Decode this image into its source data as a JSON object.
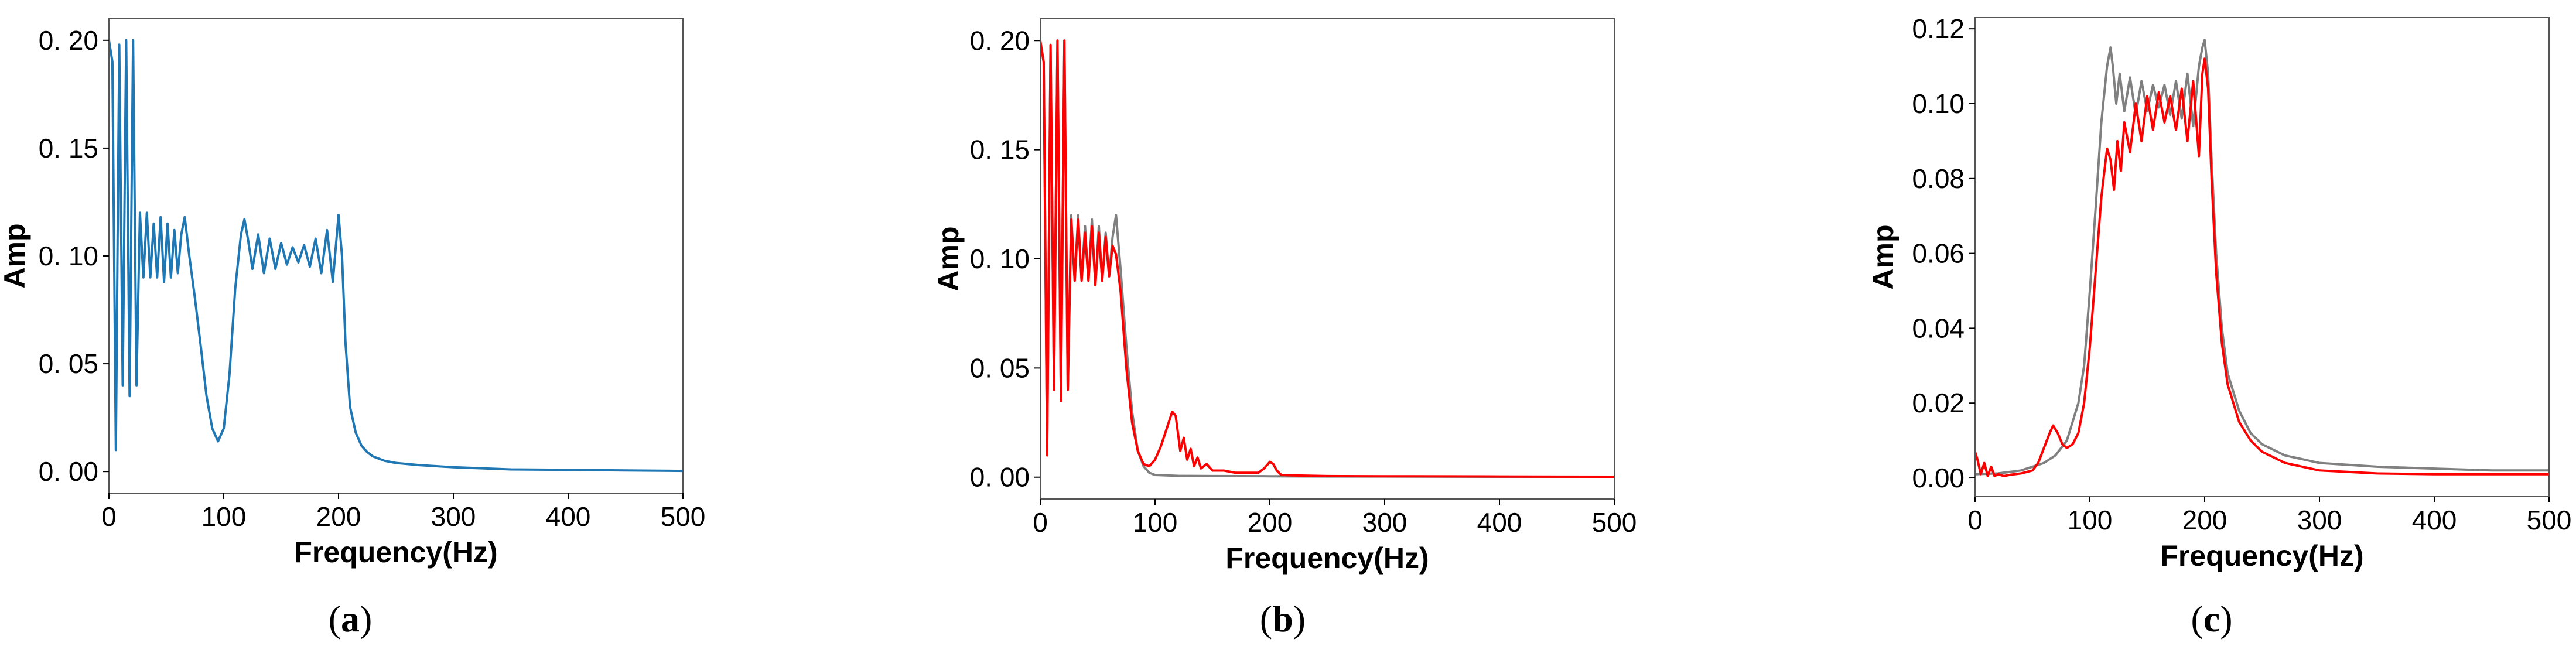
{
  "chart_data": [
    {
      "panel_label": "a",
      "type": "line",
      "xlabel": "Frequency(Hz)",
      "ylabel": "Amp",
      "xlim": [
        0,
        500
      ],
      "ylim": [
        -0.01,
        0.21
      ],
      "xticks": [
        0,
        100,
        200,
        300,
        400,
        500
      ],
      "yticks": [
        0.0,
        0.05,
        0.1,
        0.15,
        0.2
      ],
      "ytick_labels": [
        "0. 00",
        "0. 05",
        "0. 10",
        "0. 15",
        "0. 20"
      ],
      "grid": false,
      "series": [
        {
          "color": "#1f77b4",
          "x": [
            0,
            3,
            6,
            9,
            12,
            15,
            18,
            21,
            24,
            27,
            30,
            33,
            36,
            39,
            42,
            45,
            48,
            51,
            54,
            57,
            60,
            63,
            66,
            70,
            75,
            80,
            85,
            90,
            95,
            100,
            105,
            110,
            115,
            118,
            121,
            125,
            130,
            135,
            140,
            145,
            150,
            155,
            160,
            165,
            170,
            175,
            180,
            185,
            190,
            195,
            200,
            203,
            206,
            210,
            215,
            220,
            225,
            230,
            240,
            250,
            270,
            300,
            350,
            400,
            450,
            500
          ],
          "y": [
            0.2,
            0.19,
            0.01,
            0.198,
            0.04,
            0.2,
            0.035,
            0.2,
            0.04,
            0.12,
            0.09,
            0.12,
            0.09,
            0.115,
            0.09,
            0.118,
            0.088,
            0.115,
            0.09,
            0.112,
            0.092,
            0.11,
            0.118,
            0.1,
            0.08,
            0.058,
            0.035,
            0.02,
            0.014,
            0.02,
            0.045,
            0.085,
            0.11,
            0.117,
            0.108,
            0.094,
            0.11,
            0.092,
            0.108,
            0.094,
            0.106,
            0.096,
            0.104,
            0.097,
            0.105,
            0.095,
            0.108,
            0.092,
            0.112,
            0.088,
            0.119,
            0.1,
            0.06,
            0.03,
            0.018,
            0.012,
            0.009,
            0.007,
            0.005,
            0.004,
            0.003,
            0.002,
            0.001,
            0.0008,
            0.0005,
            0.0003
          ]
        }
      ]
    },
    {
      "panel_label": "b",
      "type": "line",
      "xlabel": "Frequency(Hz)",
      "ylabel": "Amp",
      "xlim": [
        0,
        500
      ],
      "ylim": [
        -0.01,
        0.21
      ],
      "xticks": [
        0,
        100,
        200,
        300,
        400,
        500
      ],
      "yticks": [
        0.0,
        0.05,
        0.1,
        0.15,
        0.2
      ],
      "ytick_labels": [
        "0. 00",
        "0. 05",
        "0. 10",
        "0. 15",
        "0. 20"
      ],
      "grid": false,
      "series": [
        {
          "color": "#808080",
          "x": [
            0,
            3,
            6,
            9,
            12,
            15,
            18,
            21,
            24,
            27,
            30,
            33,
            36,
            39,
            42,
            45,
            48,
            51,
            54,
            57,
            60,
            63,
            66,
            70,
            75,
            80,
            85,
            90,
            95,
            100,
            110,
            120,
            150,
            200,
            250,
            300,
            400,
            500
          ],
          "y": [
            0.2,
            0.19,
            0.01,
            0.198,
            0.04,
            0.2,
            0.035,
            0.2,
            0.04,
            0.12,
            0.09,
            0.12,
            0.09,
            0.115,
            0.09,
            0.118,
            0.088,
            0.115,
            0.09,
            0.112,
            0.092,
            0.11,
            0.12,
            0.095,
            0.06,
            0.03,
            0.012,
            0.005,
            0.002,
            0.001,
            0.0008,
            0.0006,
            0.0005,
            0.0004,
            0.0003,
            0.0003,
            0.0002,
            0.0002
          ]
        },
        {
          "color": "#ff0000",
          "x": [
            0,
            3,
            6,
            9,
            12,
            15,
            18,
            21,
            24,
            27,
            30,
            33,
            36,
            39,
            42,
            45,
            48,
            51,
            54,
            57,
            60,
            63,
            66,
            70,
            75,
            80,
            85,
            90,
            95,
            100,
            105,
            110,
            115,
            118,
            122,
            125,
            128,
            131,
            134,
            137,
            140,
            145,
            150,
            160,
            170,
            180,
            190,
            195,
            200,
            203,
            206,
            210,
            220,
            250,
            300,
            400,
            500
          ],
          "y": [
            0.2,
            0.19,
            0.01,
            0.198,
            0.04,
            0.2,
            0.035,
            0.2,
            0.04,
            0.118,
            0.09,
            0.118,
            0.09,
            0.112,
            0.09,
            0.115,
            0.088,
            0.112,
            0.09,
            0.11,
            0.092,
            0.106,
            0.102,
            0.085,
            0.05,
            0.025,
            0.012,
            0.006,
            0.005,
            0.008,
            0.014,
            0.022,
            0.03,
            0.028,
            0.012,
            0.018,
            0.008,
            0.013,
            0.005,
            0.009,
            0.004,
            0.006,
            0.003,
            0.003,
            0.002,
            0.002,
            0.002,
            0.004,
            0.007,
            0.006,
            0.003,
            0.001,
            0.0008,
            0.0005,
            0.0004,
            0.0003,
            0.0002
          ]
        }
      ]
    },
    {
      "panel_label": "c",
      "type": "line",
      "xlabel": "Frequency(Hz)",
      "ylabel": "Amp",
      "xlim": [
        0,
        500
      ],
      "ylim": [
        -0.005,
        0.123
      ],
      "xticks": [
        0,
        100,
        200,
        300,
        400,
        500
      ],
      "yticks": [
        0.0,
        0.02,
        0.04,
        0.06,
        0.08,
        0.1,
        0.12
      ],
      "ytick_labels": [
        "0.00",
        "0.02",
        "0.04",
        "0.06",
        "0.08",
        "0.10",
        "0.12"
      ],
      "grid": false,
      "series": [
        {
          "color": "#808080",
          "x": [
            0,
            20,
            40,
            60,
            70,
            80,
            90,
            95,
            100,
            105,
            110,
            115,
            118,
            120,
            123,
            126,
            130,
            135,
            140,
            145,
            150,
            155,
            160,
            165,
            170,
            175,
            180,
            185,
            190,
            195,
            198,
            200,
            203,
            206,
            210,
            215,
            220,
            230,
            240,
            250,
            270,
            300,
            350,
            400,
            450,
            500
          ],
          "y": [
            0.001,
            0.0012,
            0.002,
            0.004,
            0.006,
            0.01,
            0.02,
            0.03,
            0.05,
            0.072,
            0.095,
            0.11,
            0.115,
            0.11,
            0.1,
            0.108,
            0.098,
            0.107,
            0.097,
            0.106,
            0.098,
            0.105,
            0.099,
            0.105,
            0.097,
            0.106,
            0.096,
            0.108,
            0.094,
            0.11,
            0.115,
            0.117,
            0.108,
            0.085,
            0.06,
            0.04,
            0.028,
            0.018,
            0.012,
            0.009,
            0.006,
            0.004,
            0.003,
            0.0025,
            0.002,
            0.002
          ]
        },
        {
          "color": "#ff0000",
          "x": [
            0,
            2,
            5,
            8,
            11,
            14,
            17,
            20,
            25,
            30,
            40,
            50,
            55,
            60,
            65,
            68,
            72,
            76,
            80,
            85,
            90,
            95,
            100,
            105,
            110,
            115,
            118,
            121,
            124,
            127,
            130,
            135,
            140,
            145,
            150,
            155,
            160,
            165,
            170,
            175,
            180,
            185,
            190,
            195,
            198,
            200,
            203,
            206,
            210,
            215,
            220,
            230,
            240,
            250,
            270,
            300,
            350,
            400,
            450,
            500
          ],
          "y": [
            0.007,
            0.005,
            0.001,
            0.004,
            0.0005,
            0.003,
            0.0005,
            0.001,
            0.0005,
            0.0008,
            0.0012,
            0.002,
            0.004,
            0.008,
            0.012,
            0.014,
            0.012,
            0.009,
            0.008,
            0.009,
            0.012,
            0.02,
            0.035,
            0.055,
            0.075,
            0.088,
            0.085,
            0.077,
            0.09,
            0.082,
            0.095,
            0.087,
            0.1,
            0.09,
            0.102,
            0.093,
            0.103,
            0.095,
            0.102,
            0.093,
            0.104,
            0.09,
            0.106,
            0.086,
            0.108,
            0.112,
            0.104,
            0.08,
            0.055,
            0.036,
            0.025,
            0.015,
            0.01,
            0.007,
            0.004,
            0.002,
            0.0012,
            0.001,
            0.001,
            0.001
          ]
        }
      ]
    }
  ]
}
